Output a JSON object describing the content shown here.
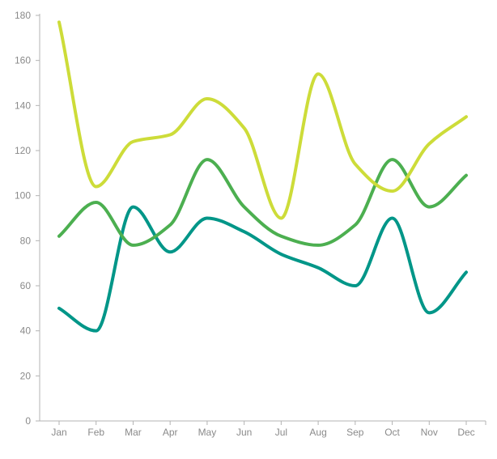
{
  "chart_data": {
    "type": "line",
    "title": "",
    "xlabel": "",
    "ylabel": "",
    "categories": [
      "Jan",
      "Feb",
      "Mar",
      "Apr",
      "May",
      "Jun",
      "Jul",
      "Aug",
      "Sep",
      "Oct",
      "Nov",
      "Dec"
    ],
    "ylim": [
      0,
      180
    ],
    "yticks": [
      0,
      20,
      40,
      60,
      80,
      100,
      120,
      140,
      160,
      180
    ],
    "grid": false,
    "legend": "none",
    "smooth": true,
    "series": [
      {
        "color": "#cddc39",
        "values": [
          177,
          104,
          124,
          127,
          143,
          130,
          90,
          154,
          114,
          102,
          123,
          135
        ]
      },
      {
        "color": "#4caf50",
        "values": [
          82,
          97,
          78,
          87,
          116,
          95,
          82,
          78,
          87,
          116,
          95,
          109
        ]
      },
      {
        "color": "#009688",
        "values": [
          50,
          40,
          95,
          75,
          90,
          84,
          74,
          68,
          60,
          90,
          48,
          66
        ]
      }
    ]
  }
}
